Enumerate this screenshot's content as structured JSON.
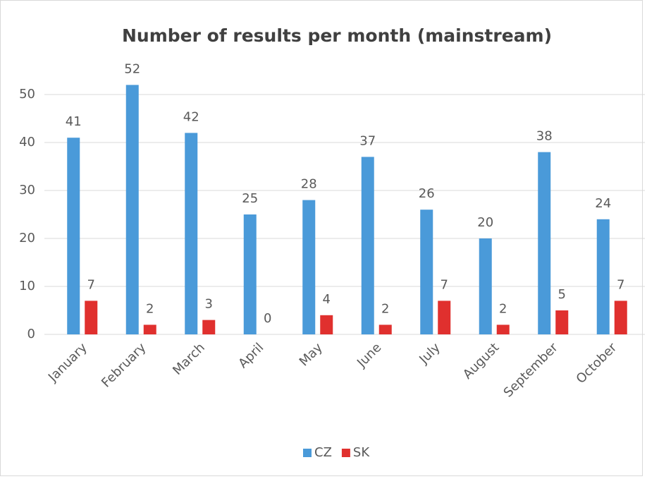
{
  "chart_data": {
    "type": "bar",
    "title": "Number of results per month (mainstream)",
    "categories": [
      "January",
      "February",
      "March",
      "April",
      "May",
      "June",
      "July",
      "August",
      "September",
      "October"
    ],
    "series": [
      {
        "name": "CZ",
        "color": "#4a9ad9",
        "values": [
          41,
          52,
          42,
          25,
          28,
          37,
          26,
          20,
          38,
          24
        ]
      },
      {
        "name": "SK",
        "color": "#e0302e",
        "values": [
          7,
          2,
          3,
          0,
          4,
          2,
          7,
          2,
          5,
          7
        ]
      }
    ],
    "ylim": [
      0,
      55
    ],
    "yticks": [
      0,
      10,
      20,
      30,
      40,
      50
    ],
    "grid": true,
    "legend": "bottom"
  }
}
